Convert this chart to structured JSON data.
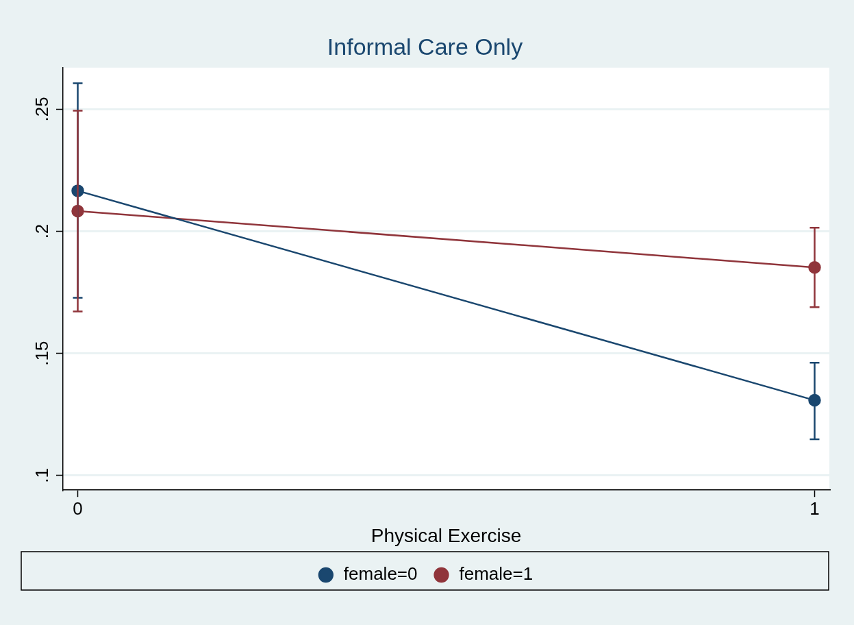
{
  "chart_data": {
    "type": "line",
    "title": "Informal Care Only",
    "xlabel": "Physical Exercise",
    "x": [
      0,
      1
    ],
    "series": [
      {
        "name": "female=0",
        "color": "#1a476f",
        "values": [
          0.2166,
          0.1308
        ],
        "errors": [
          [
            0.1728,
            0.2606
          ],
          [
            0.1148,
            0.1462
          ]
        ]
      },
      {
        "name": "female=1",
        "color": "#90353b",
        "values": [
          0.2083,
          0.1852
        ],
        "errors": [
          [
            0.1672,
            0.2494
          ],
          [
            0.1689,
            0.2015
          ]
        ]
      }
    ],
    "xlim": [
      -0.02,
      1.02
    ],
    "xticks": [
      0,
      1
    ],
    "ylim": [
      0.094,
      0.267
    ],
    "yticks": [
      {
        "value": 0.1,
        "label": ".1"
      },
      {
        "value": 0.15,
        "label": ".15"
      },
      {
        "value": 0.2,
        "label": ".2"
      },
      {
        "value": 0.25,
        "label": ".25"
      }
    ],
    "grid": "y",
    "legend": "bottom",
    "marker": "circle",
    "line_style": "solid"
  }
}
